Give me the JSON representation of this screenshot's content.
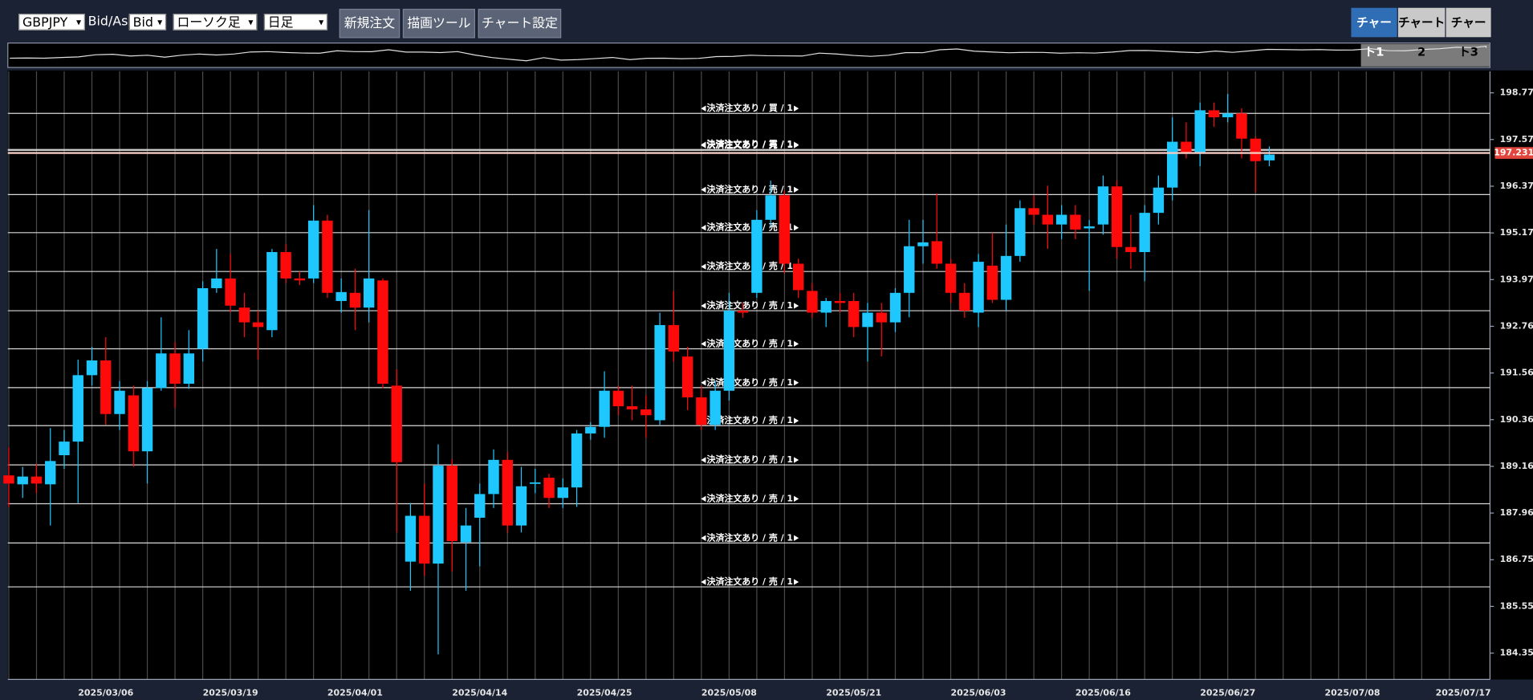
{
  "toolbar": {
    "symbol": "GBPJPY",
    "bidask_label": "Bid/Ask",
    "bidask": "Bid",
    "chart_kind": "ローソク足",
    "timeframe": "日足",
    "buttons": [
      "新規注文",
      "描画ツール",
      "チャート設定"
    ]
  },
  "tabs": [
    "チャート1",
    "チャート2",
    "チャート3"
  ],
  "chart_data": {
    "type": "candlestick",
    "categories": [
      null,
      null,
      null,
      null,
      null,
      null,
      null,
      "2025/03/06",
      null,
      null,
      null,
      null,
      null,
      null,
      null,
      null,
      "2025/03/19",
      null,
      null,
      null,
      null,
      null,
      null,
      null,
      null,
      "2025/04/01",
      null,
      null,
      null,
      null,
      null,
      null,
      null,
      null,
      "2025/04/14",
      null,
      null,
      null,
      null,
      null,
      null,
      null,
      null,
      "2025/04/25",
      null,
      null,
      null,
      null,
      null,
      null,
      null,
      null,
      "2025/05/08",
      null,
      null,
      null,
      null,
      null,
      null,
      null,
      null,
      "2025/05/21",
      null,
      null,
      null,
      null,
      null,
      null,
      null,
      null,
      "2025/06/03",
      null,
      null,
      null,
      null,
      null,
      null,
      null,
      null,
      "2025/06/16",
      null,
      null,
      null,
      null,
      null,
      null,
      null,
      null,
      "2025/06/27",
      null,
      null,
      null,
      null,
      null,
      null,
      null,
      null,
      "2025/07/08",
      null,
      null,
      null,
      null,
      null,
      null,
      null,
      "2025/07/17"
    ],
    "open": [
      188.93,
      188.7,
      188.9,
      188.7,
      189.45,
      189.8,
      191.51,
      191.89,
      190.51,
      190.99,
      189.55,
      191.18,
      192.07,
      191.29,
      192.19,
      193.75,
      194.0,
      193.25,
      192.87,
      192.67,
      194.68,
      194.0,
      194.0,
      195.49,
      193.42,
      193.63,
      193.25,
      193.95,
      191.24,
      186.71,
      187.89,
      186.66,
      189.18,
      187.21,
      187.84,
      188.45,
      189.33,
      187.64,
      188.72,
      188.87,
      188.35,
      188.62,
      190.01,
      190.18,
      191.11,
      190.71,
      190.63,
      190.35,
      192.8,
      191.99,
      190.94,
      190.23,
      191.11,
      193.17,
      193.63,
      195.51,
      196.14,
      194.38,
      193.68,
      193.12,
      193.42,
      193.42,
      192.75,
      193.12,
      192.87,
      193.63,
      194.83,
      194.96,
      194.38,
      193.63,
      193.12,
      194.33,
      193.45,
      194.58,
      195.81,
      195.64,
      195.39,
      195.64,
      195.29,
      195.39,
      196.37,
      194.81,
      194.68,
      195.69,
      196.34,
      197.52,
      197.22,
      198.33,
      198.15,
      198.25,
      197.6,
      197.04,
      null,
      null,
      null,
      null,
      null,
      null,
      null,
      null,
      null,
      null,
      null,
      null,
      null,
      null
    ],
    "high": [
      189.65,
      189.15,
      189.23,
      190.15,
      190.1,
      191.91,
      192.24,
      192.49,
      191.36,
      191.24,
      191.36,
      193.0,
      192.37,
      192.67,
      193.93,
      194.76,
      194.63,
      193.63,
      193.17,
      194.76,
      194.88,
      194.18,
      195.89,
      195.64,
      194.0,
      194.25,
      195.76,
      194.0,
      191.66,
      188.22,
      188.72,
      189.73,
      189.35,
      188.09,
      188.72,
      189.6,
      189.53,
      189.15,
      189.1,
      188.97,
      188.85,
      190.1,
      190.3,
      191.61,
      191.24,
      191.24,
      190.99,
      193.12,
      193.68,
      192.24,
      191.24,
      191.36,
      193.63,
      193.37,
      195.76,
      196.52,
      196.27,
      194.51,
      193.88,
      193.5,
      193.63,
      193.63,
      193.37,
      193.37,
      193.75,
      195.51,
      195.51,
      196.19,
      194.51,
      193.88,
      194.63,
      195.18,
      195.39,
      196.01,
      196.14,
      196.39,
      195.89,
      195.89,
      195.51,
      196.65,
      196.52,
      195.64,
      195.89,
      196.65,
      198.15,
      198.02,
      198.53,
      198.53,
      198.75,
      198.38,
      197.65,
      197.4,
      null,
      null,
      null,
      null,
      null,
      null,
      null,
      null,
      null,
      null,
      null,
      null,
      null,
      null
    ],
    "low": [
      188.12,
      188.35,
      188.47,
      187.64,
      189.1,
      188.22,
      191.24,
      190.23,
      190.1,
      189.15,
      188.72,
      191.11,
      190.66,
      191.16,
      191.86,
      193.63,
      193.12,
      192.49,
      191.91,
      192.49,
      193.88,
      193.83,
      193.88,
      193.5,
      193.12,
      192.67,
      192.87,
      191.18,
      187.46,
      185.96,
      186.34,
      184.32,
      186.46,
      185.96,
      186.59,
      188.09,
      187.46,
      187.46,
      188.47,
      188.09,
      188.09,
      188.12,
      189.85,
      189.9,
      190.48,
      190.35,
      189.9,
      190.23,
      191.86,
      190.61,
      190.1,
      190.1,
      190.86,
      192.99,
      193.5,
      195.34,
      194.13,
      193.5,
      192.99,
      192.75,
      193.12,
      192.49,
      191.86,
      191.99,
      192.62,
      193.0,
      194.38,
      194.25,
      193.37,
      192.99,
      192.75,
      193.37,
      193.17,
      194.43,
      195.39,
      194.76,
      195.01,
      195.01,
      193.68,
      195.13,
      194.51,
      194.25,
      193.93,
      195.39,
      196.01,
      197.09,
      196.89,
      197.9,
      198.02,
      197.09,
      196.22,
      196.89,
      null,
      null,
      null,
      null,
      null,
      null,
      null,
      null,
      null,
      null,
      null,
      null,
      null,
      null
    ],
    "close": [
      188.72,
      188.9,
      188.72,
      189.3,
      189.8,
      191.51,
      191.89,
      190.51,
      191.11,
      189.55,
      191.18,
      192.07,
      191.29,
      192.07,
      193.75,
      194.0,
      193.3,
      192.87,
      192.75,
      194.68,
      194.0,
      193.95,
      195.49,
      193.63,
      193.65,
      193.25,
      194.0,
      191.29,
      189.27,
      187.89,
      186.66,
      189.18,
      187.24,
      187.64,
      188.45,
      189.33,
      187.64,
      188.65,
      188.75,
      188.35,
      188.62,
      190.01,
      190.18,
      191.11,
      190.71,
      190.63,
      190.48,
      192.8,
      192.12,
      190.94,
      190.23,
      191.11,
      193.17,
      193.12,
      195.51,
      196.14,
      194.38,
      193.7,
      193.12,
      193.42,
      193.37,
      192.75,
      193.12,
      192.87,
      193.63,
      194.83,
      194.93,
      194.38,
      193.63,
      193.17,
      194.43,
      193.45,
      194.58,
      195.81,
      195.64,
      195.39,
      195.64,
      195.26,
      195.34,
      196.37,
      194.81,
      194.68,
      195.69,
      196.34,
      197.52,
      197.22,
      198.33,
      198.15,
      198.25,
      197.6,
      197.02,
      197.19,
      null,
      null,
      null,
      null,
      null,
      null,
      null,
      null,
      null,
      null,
      null,
      null,
      null,
      null
    ],
    "up_color": "#1ec8ff",
    "down_color": "#ff0a0a",
    "ylim": [
      183.676,
      199.332
    ],
    "yticks": [
      198.779,
      197.577,
      196.375,
      195.173,
      193.971,
      192.769,
      191.567,
      190.365,
      189.163,
      187.961,
      186.759,
      185.557,
      184.355
    ],
    "current_price": 197.231,
    "orders": [
      {
        "price": 198.25,
        "label": "決済注文あり / 買 / 1"
      },
      {
        "price": 197.32,
        "label": "決済注文あり / 買 / 1"
      },
      {
        "price": 197.3,
        "label": "決済注文あり / 売 / 1"
      },
      {
        "price": 196.16,
        "label": "決済注文あり / 売 / 1"
      },
      {
        "price": 195.18,
        "label": "決済注文あり / 売 / 1"
      },
      {
        "price": 194.18,
        "label": "決済注文あり / 売 / 1"
      },
      {
        "price": 193.17,
        "label": "決済注文あり / 売 / 1"
      },
      {
        "price": 192.19,
        "label": "決済注文あり / 売 / 1"
      },
      {
        "price": 191.19,
        "label": "決済注文あり / 売 / 1"
      },
      {
        "price": 190.21,
        "label": "決済注文あり / 売 / 1"
      },
      {
        "price": 189.2,
        "label": "決済注文あり / 売 / 1"
      },
      {
        "price": 188.2,
        "label": "決済注文あり / 売 / 1"
      },
      {
        "price": 187.19,
        "label": "決済注文あり / 売 / 1"
      },
      {
        "price": 186.06,
        "label": "決済注文あり / 売 / 1"
      }
    ]
  }
}
